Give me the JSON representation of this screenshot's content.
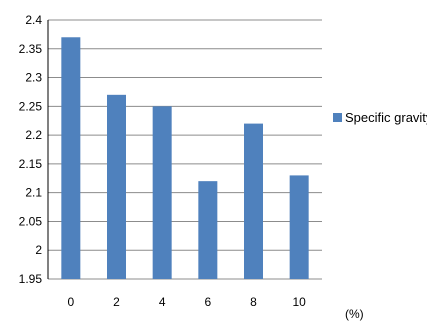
{
  "chart_data": {
    "type": "bar",
    "categories": [
      "0",
      "2",
      "4",
      "6",
      "8",
      "10"
    ],
    "series": [
      {
        "name": "Specific gravity",
        "values": [
          2.37,
          2.27,
          2.25,
          2.12,
          2.22,
          2.13
        ],
        "color": "#4f81bd"
      }
    ],
    "title": "",
    "xlabel": "(%)",
    "ylabel": "",
    "ylim": [
      1.95,
      2.4
    ],
    "yticks": [
      "1.95",
      "2",
      "2.05",
      "2.1",
      "2.15",
      "2.2",
      "2.25",
      "2.3",
      "2.35",
      "2.4"
    ],
    "grid": true,
    "legend_position": "right"
  }
}
